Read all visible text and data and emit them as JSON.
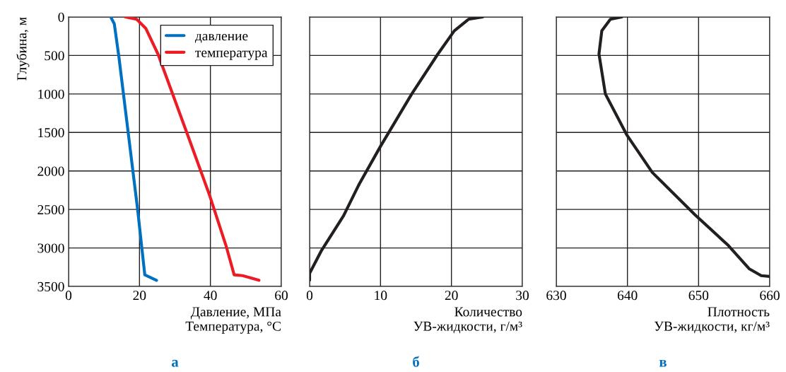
{
  "chart_data": [
    {
      "type": "line",
      "title": "а",
      "xlabel": "Давление, МПа\nТемпература, °C",
      "ylabel": "Глубина, м",
      "xlim": [
        0,
        60
      ],
      "xticks": [
        0,
        20,
        40,
        60
      ],
      "ylim": [
        3500,
        0
      ],
      "yticks": [
        0,
        500,
        1000,
        1500,
        2000,
        2500,
        3000,
        3500
      ],
      "grid": true,
      "legend": "top right",
      "series": [
        {
          "name": "давление",
          "color": "#0070c0",
          "x": [
            11.9,
            12.9,
            14.2,
            19.5,
            21.5,
            24.8
          ],
          "values": [
            0,
            90,
            520,
            2510,
            3350,
            3420
          ]
        },
        {
          "name": "температура",
          "color": "#ed1c24",
          "x": [
            16.0,
            19.2,
            21.8,
            25.2,
            29.1,
            33.8,
            39.8,
            44.4,
            46.7,
            49.1,
            53.7
          ],
          "values": [
            0,
            30,
            150,
            480,
            970,
            1560,
            2320,
            2970,
            3350,
            3360,
            3420
          ]
        }
      ]
    },
    {
      "type": "line",
      "title": "б",
      "xlabel": "Количество\nУВ-жидкости, г/м³",
      "xlim": [
        0,
        30
      ],
      "xticks": [
        0,
        10,
        20,
        30
      ],
      "ylim": [
        3500,
        0
      ],
      "yticks": [
        0,
        500,
        1000,
        1500,
        2000,
        2500,
        3000,
        3500
      ],
      "grid": true,
      "tick_labels": "x",
      "series": [
        {
          "color": "#231f20",
          "x": [
            0.0,
            0.0,
            1.7,
            4.8,
            7.0,
            10.0,
            14.4,
            18.1,
            20.4,
            22.4,
            24.4
          ],
          "values": [
            3420,
            3330,
            3030,
            2580,
            2170,
            1680,
            1000,
            480,
            180,
            30,
            0
          ]
        }
      ]
    },
    {
      "type": "line",
      "title": "в",
      "xlabel": "Плотность\nУВ-жидкости, кг/м³",
      "xlim": [
        630,
        660
      ],
      "xticks": [
        630,
        640,
        650,
        660
      ],
      "ylim": [
        3500,
        0
      ],
      "yticks": [
        0,
        500,
        1000,
        1500,
        2000,
        2500,
        3000,
        3500
      ],
      "grid": true,
      "tick_labels": "x",
      "series": [
        {
          "color": "#231f20",
          "x": [
            639.2,
            637.6,
            636.4,
            636.0,
            636.9,
            639.9,
            643.5,
            649.5,
            654.2,
            657.1,
            658.8,
            660.0
          ],
          "values": [
            0,
            30,
            180,
            480,
            1000,
            1530,
            2020,
            2570,
            2970,
            3270,
            3360,
            3370
          ]
        }
      ]
    }
  ]
}
